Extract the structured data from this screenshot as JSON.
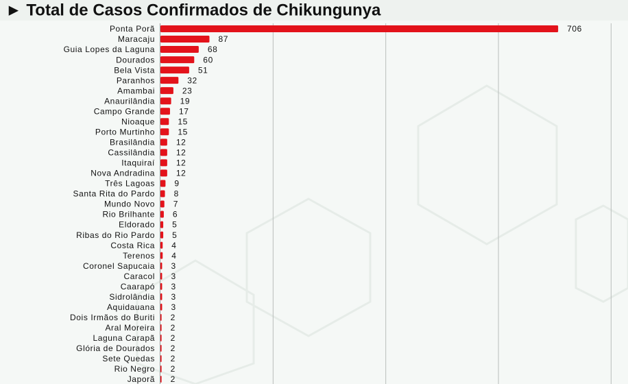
{
  "chart_data": {
    "type": "bar",
    "orientation": "horizontal",
    "title": "► Total de Casos Confirmados de Chikungunya",
    "categories": [
      "Ponta Porã",
      "Maracaju",
      "Guia Lopes da Laguna",
      "Dourados",
      "Bela Vista",
      "Paranhos",
      "Amambai",
      "Anaurilândia",
      "Campo Grande",
      "Nioaque",
      "Porto Murtinho",
      "Brasilândia",
      "Cassilândia",
      "Itaquiraí",
      "Nova Andradina",
      "Três Lagoas",
      "Santa Rita do Pardo",
      "Mundo Novo",
      "Rio Brilhante",
      "Eldorado",
      "Ribas do Rio Pardo",
      "Costa Rica",
      "Terenos",
      "Coronel Sapucaia",
      "Caracol",
      "Caarapó",
      "Sidrolândia",
      "Aquidauana",
      "Dois Irmãos do Buriti",
      "Aral Moreira",
      "Laguna Carapã",
      "Glória de Dourados",
      "Sete Quedas",
      "Rio Negro",
      "Japorã"
    ],
    "values": [
      706,
      87,
      68,
      60,
      51,
      32,
      23,
      19,
      17,
      15,
      15,
      12,
      12,
      12,
      12,
      9,
      8,
      7,
      6,
      5,
      5,
      4,
      4,
      3,
      3,
      3,
      3,
      3,
      2,
      2,
      2,
      2,
      2,
      2,
      2
    ],
    "color": "#e3131b",
    "xlim": [
      0,
      830
    ],
    "xticks": [
      200,
      400,
      600,
      800
    ],
    "xtick_labels": false,
    "grid": true
  }
}
